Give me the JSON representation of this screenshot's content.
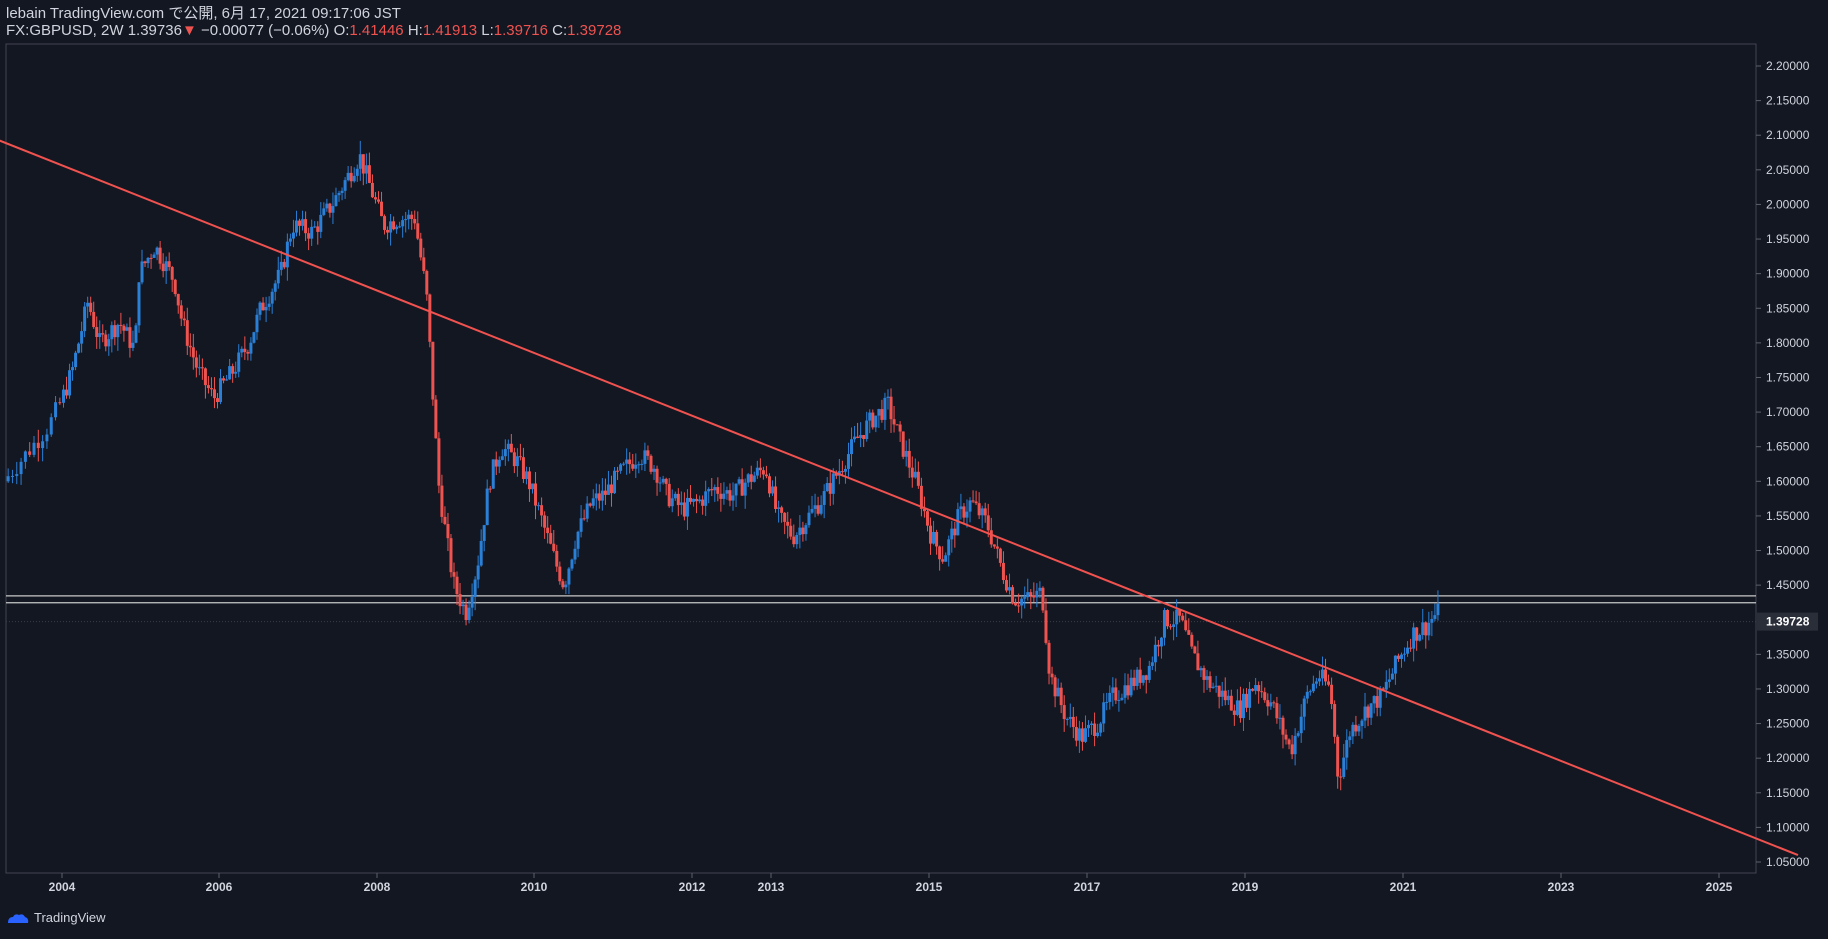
{
  "header": {
    "line1": "lebain TradingView.com で公開, 6月 17, 2021 09:17:06 JST",
    "symbol": "FX:GBPUSD, 2W",
    "last": "1.39736",
    "change": "−0.00077 (−0.06%)",
    "o_label": "O:",
    "o": "1.41446",
    "h_label": "H:",
    "h": "1.41913",
    "l_label": "L:",
    "l": "1.39716",
    "c_label": "C:",
    "c": "1.39728"
  },
  "footer": {
    "brand": "TradingView"
  },
  "colors": {
    "background": "#131722",
    "up": "#2a7fd6",
    "down": "#ef5350",
    "trendline": "#f0524f",
    "level": "#c8c8c8"
  },
  "chart_data": {
    "type": "candlestick",
    "symbol": "FX:GBPUSD",
    "interval": "2W",
    "ylim": [
      1.05,
      2.2
    ],
    "y_ticks": [
      1.05,
      1.1,
      1.15,
      1.2,
      1.25,
      1.3,
      1.35,
      1.4,
      1.45,
      1.5,
      1.55,
      1.6,
      1.65,
      1.7,
      1.75,
      1.8,
      1.85,
      1.9,
      1.95,
      2.0,
      2.05,
      2.1,
      2.15,
      2.2
    ],
    "x_ticks": [
      "2004",
      "2006",
      "2008",
      "2010",
      "2012",
      "2013",
      "2015",
      "2017",
      "2019",
      "2021",
      "2023",
      "2025"
    ],
    "last_price_label": "1.39728",
    "price_path": [
      [
        2003.5,
        1.6
      ],
      [
        2003.9,
        1.68
      ],
      [
        2004.15,
        1.76
      ],
      [
        2004.35,
        1.86
      ],
      [
        2004.5,
        1.8
      ],
      [
        2004.75,
        1.83
      ],
      [
        2004.95,
        1.79
      ],
      [
        2005.0,
        1.9
      ],
      [
        2005.2,
        1.94
      ],
      [
        2005.45,
        1.89
      ],
      [
        2005.55,
        1.83
      ],
      [
        2005.75,
        1.76
      ],
      [
        2005.95,
        1.72
      ],
      [
        2006.2,
        1.76
      ],
      [
        2006.4,
        1.8
      ],
      [
        2006.55,
        1.85
      ],
      [
        2006.8,
        1.9
      ],
      [
        2006.95,
        1.97
      ],
      [
        2007.2,
        1.96
      ],
      [
        2007.45,
        2.0
      ],
      [
        2007.6,
        2.03
      ],
      [
        2007.8,
        2.07
      ],
      [
        2007.95,
        2.02
      ],
      [
        2008.1,
        1.97
      ],
      [
        2008.3,
        1.98
      ],
      [
        2008.5,
        1.98
      ],
      [
        2008.65,
        1.87
      ],
      [
        2008.8,
        1.6
      ],
      [
        2008.9,
        1.52
      ],
      [
        2009.0,
        1.45
      ],
      [
        2009.15,
        1.41
      ],
      [
        2009.3,
        1.48
      ],
      [
        2009.45,
        1.6
      ],
      [
        2009.6,
        1.65
      ],
      [
        2009.8,
        1.63
      ],
      [
        2009.95,
        1.6
      ],
      [
        2010.1,
        1.55
      ],
      [
        2010.3,
        1.48
      ],
      [
        2010.4,
        1.45
      ],
      [
        2010.55,
        1.52
      ],
      [
        2010.75,
        1.57
      ],
      [
        2010.9,
        1.58
      ],
      [
        2011.1,
        1.61
      ],
      [
        2011.35,
        1.64
      ],
      [
        2011.55,
        1.62
      ],
      [
        2011.7,
        1.58
      ],
      [
        2011.9,
        1.56
      ],
      [
        2012.1,
        1.57
      ],
      [
        2012.3,
        1.59
      ],
      [
        2012.55,
        1.58
      ],
      [
        2012.7,
        1.6
      ],
      [
        2012.95,
        1.62
      ],
      [
        2013.1,
        1.55
      ],
      [
        2013.3,
        1.52
      ],
      [
        2013.5,
        1.55
      ],
      [
        2013.7,
        1.58
      ],
      [
        2013.9,
        1.62
      ],
      [
        2014.1,
        1.66
      ],
      [
        2014.3,
        1.69
      ],
      [
        2014.5,
        1.71
      ],
      [
        2014.65,
        1.66
      ],
      [
        2014.85,
        1.6
      ],
      [
        2015.05,
        1.52
      ],
      [
        2015.2,
        1.49
      ],
      [
        2015.4,
        1.55
      ],
      [
        2015.55,
        1.57
      ],
      [
        2015.75,
        1.54
      ],
      [
        2015.95,
        1.47
      ],
      [
        2016.1,
        1.43
      ],
      [
        2016.3,
        1.43
      ],
      [
        2016.45,
        1.44
      ],
      [
        2016.55,
        1.32
      ],
      [
        2016.75,
        1.26
      ],
      [
        2016.95,
        1.23
      ],
      [
        2017.15,
        1.25
      ],
      [
        2017.35,
        1.29
      ],
      [
        2017.6,
        1.31
      ],
      [
        2017.8,
        1.33
      ],
      [
        2018.0,
        1.4
      ],
      [
        2018.2,
        1.4
      ],
      [
        2018.35,
        1.35
      ],
      [
        2018.55,
        1.31
      ],
      [
        2018.75,
        1.29
      ],
      [
        2018.95,
        1.27
      ],
      [
        2019.15,
        1.31
      ],
      [
        2019.35,
        1.28
      ],
      [
        2019.6,
        1.21
      ],
      [
        2019.8,
        1.29
      ],
      [
        2019.95,
        1.32
      ],
      [
        2020.1,
        1.3
      ],
      [
        2020.2,
        1.17
      ],
      [
        2020.35,
        1.24
      ],
      [
        2020.55,
        1.27
      ],
      [
        2020.75,
        1.29
      ],
      [
        2020.95,
        1.34
      ],
      [
        2021.15,
        1.38
      ],
      [
        2021.3,
        1.39
      ],
      [
        2021.45,
        1.41
      ]
    ],
    "trendline": {
      "from": [
        2001.3,
        2.23
      ],
      "to": [
        2026.0,
        1.06
      ]
    },
    "horizontal_levels": [
      1.4345,
      1.4245,
      1.3973
    ]
  }
}
